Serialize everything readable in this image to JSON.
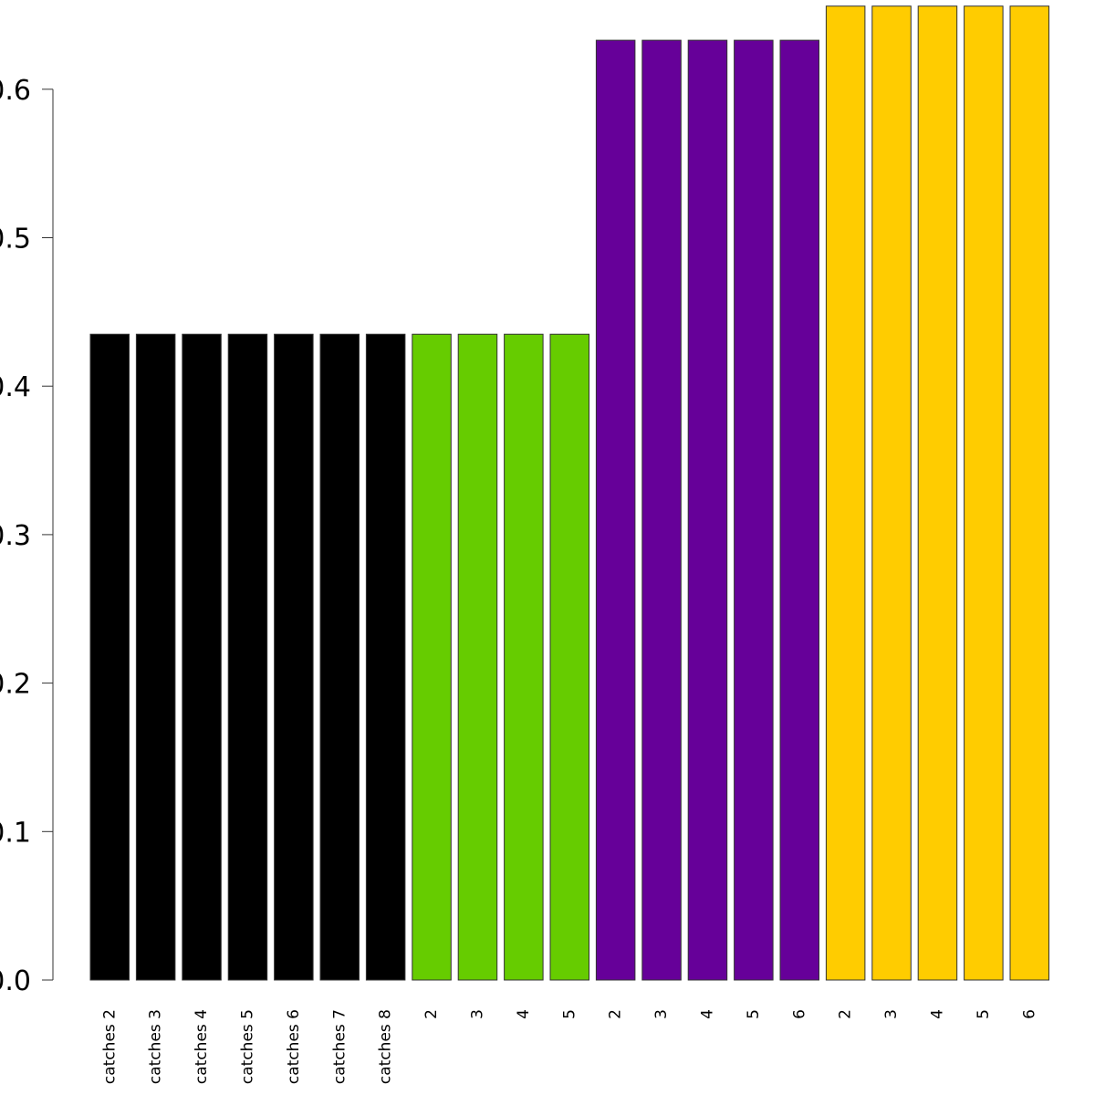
{
  "chart_data": {
    "type": "bar",
    "title": "",
    "xlabel": "",
    "ylabel": "",
    "ylim": [
      0,
      0.656
    ],
    "yticks": [
      "0.0",
      "0.1",
      "0.2",
      "0.3",
      "0.4",
      "0.5",
      "0.6"
    ],
    "grid": false,
    "legend": "none",
    "categories": [
      "catches 2",
      "catches 3",
      "catches 4",
      "catches 5",
      "catches 6",
      "catches 7",
      "catches 8",
      "2",
      "3",
      "4",
      "5",
      "2",
      "3",
      "4",
      "5",
      "6",
      "2",
      "3",
      "4",
      "5",
      "6"
    ],
    "values": [
      0.435,
      0.435,
      0.435,
      0.435,
      0.435,
      0.435,
      0.435,
      0.435,
      0.435,
      0.435,
      0.435,
      0.633,
      0.633,
      0.633,
      0.633,
      0.633,
      0.656,
      0.656,
      0.656,
      0.656,
      0.656
    ],
    "colors": [
      "#000000",
      "#000000",
      "#000000",
      "#000000",
      "#000000",
      "#000000",
      "#000000",
      "#66cc00",
      "#66cc00",
      "#66cc00",
      "#66cc00",
      "#660099",
      "#660099",
      "#660099",
      "#660099",
      "#660099",
      "#ffcc00",
      "#ffcc00",
      "#ffcc00",
      "#ffcc00",
      "#ffcc00"
    ]
  }
}
